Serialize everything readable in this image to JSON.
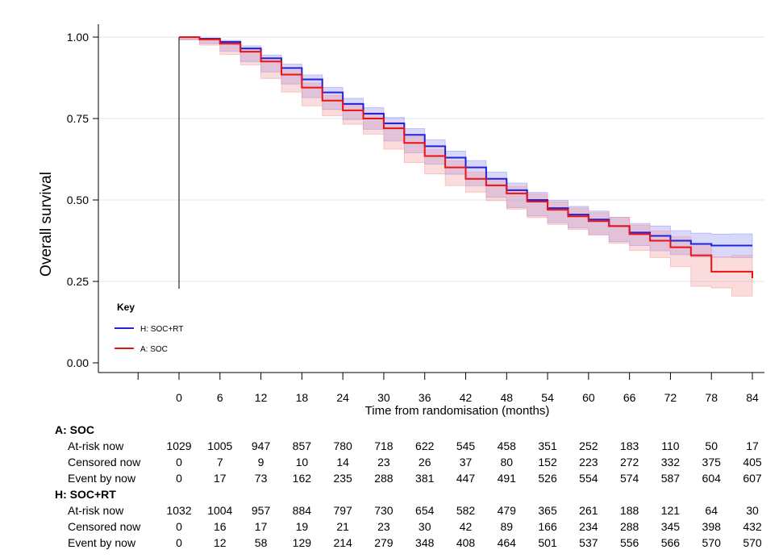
{
  "chart_data": {
    "type": "line",
    "title": "",
    "ylabel": "Overall survival",
    "xlabel": "Time from randomisation (months)",
    "xlim": [
      -6,
      84
    ],
    "ylim": [
      0,
      1
    ],
    "x_ticks": [
      0,
      6,
      12,
      18,
      24,
      30,
      36,
      42,
      48,
      54,
      60,
      66,
      72,
      78,
      84
    ],
    "y_ticks": [
      "0.00",
      "0.25",
      "0.50",
      "0.75",
      "1.00"
    ],
    "grid": "horizontal",
    "legend": {
      "title": "Key",
      "placement": "bottom-left"
    },
    "series": [
      {
        "name": "H: SOC+RT",
        "color": "#2222dd",
        "band_color": "#8f8ff0",
        "points": [
          [
            0,
            1.0
          ],
          [
            3,
            0.995
          ],
          [
            6,
            0.985
          ],
          [
            9,
            0.965
          ],
          [
            12,
            0.935
          ],
          [
            15,
            0.905
          ],
          [
            18,
            0.87
          ],
          [
            21,
            0.83
          ],
          [
            24,
            0.795
          ],
          [
            27,
            0.765
          ],
          [
            30,
            0.735
          ],
          [
            33,
            0.7
          ],
          [
            36,
            0.665
          ],
          [
            39,
            0.63
          ],
          [
            42,
            0.6
          ],
          [
            45,
            0.565
          ],
          [
            48,
            0.53
          ],
          [
            51,
            0.5
          ],
          [
            54,
            0.475
          ],
          [
            57,
            0.455
          ],
          [
            60,
            0.44
          ],
          [
            63,
            0.42
          ],
          [
            66,
            0.4
          ],
          [
            69,
            0.39
          ],
          [
            72,
            0.375
          ],
          [
            75,
            0.365
          ],
          [
            78,
            0.36
          ],
          [
            81,
            0.36
          ],
          [
            84,
            0.36
          ]
        ],
        "ci_halfwidth": [
          0,
          0.002,
          0.005,
          0.008,
          0.01,
          0.012,
          0.014,
          0.016,
          0.017,
          0.018,
          0.018,
          0.019,
          0.02,
          0.02,
          0.021,
          0.021,
          0.022,
          0.023,
          0.024,
          0.025,
          0.026,
          0.027,
          0.028,
          0.03,
          0.031,
          0.033,
          0.035,
          0.036,
          0.037
        ]
      },
      {
        "name": "A: SOC",
        "color": "#ee1111",
        "band_color": "#f49a9a",
        "points": [
          [
            0,
            1.0
          ],
          [
            3,
            0.993
          ],
          [
            6,
            0.98
          ],
          [
            9,
            0.955
          ],
          [
            12,
            0.925
          ],
          [
            15,
            0.885
          ],
          [
            18,
            0.845
          ],
          [
            21,
            0.805
          ],
          [
            24,
            0.775
          ],
          [
            27,
            0.75
          ],
          [
            30,
            0.72
          ],
          [
            33,
            0.675
          ],
          [
            36,
            0.635
          ],
          [
            39,
            0.6
          ],
          [
            42,
            0.565
          ],
          [
            45,
            0.545
          ],
          [
            48,
            0.52
          ],
          [
            51,
            0.495
          ],
          [
            54,
            0.47
          ],
          [
            57,
            0.45
          ],
          [
            60,
            0.435
          ],
          [
            63,
            0.42
          ],
          [
            66,
            0.395
          ],
          [
            69,
            0.375
          ],
          [
            72,
            0.355
          ],
          [
            75,
            0.33
          ],
          [
            78,
            0.28
          ],
          [
            81,
            0.28
          ],
          [
            84,
            0.26
          ]
        ],
        "ci_halfwidth": [
          0,
          0.002,
          0.005,
          0.008,
          0.01,
          0.012,
          0.014,
          0.016,
          0.017,
          0.018,
          0.018,
          0.019,
          0.02,
          0.02,
          0.021,
          0.021,
          0.022,
          0.023,
          0.024,
          0.025,
          0.026,
          0.027,
          0.028,
          0.03,
          0.032,
          0.035,
          0.045,
          0.05,
          0.055
        ]
      }
    ],
    "risk_table": [
      {
        "group": "A: SOC",
        "rows": [
          {
            "label": "At-risk now",
            "values": [
              "1029",
              "1005",
              "947",
              "857",
              "780",
              "718",
              "622",
              "545",
              "458",
              "351",
              "252",
              "183",
              "110",
              "50",
              "17"
            ]
          },
          {
            "label": "Censored now",
            "values": [
              "0",
              "7",
              "9",
              "10",
              "14",
              "23",
              "26",
              "37",
              "80",
              "152",
              "223",
              "272",
              "332",
              "375",
              "405"
            ]
          },
          {
            "label": "Event by now",
            "values": [
              "0",
              "17",
              "73",
              "162",
              "235",
              "288",
              "381",
              "447",
              "491",
              "526",
              "554",
              "574",
              "587",
              "604",
              "607"
            ]
          }
        ]
      },
      {
        "group": "H: SOC+RT",
        "rows": [
          {
            "label": "At-risk now",
            "values": [
              "1032",
              "1004",
              "957",
              "884",
              "797",
              "730",
              "654",
              "582",
              "479",
              "365",
              "261",
              "188",
              "121",
              "64",
              "30"
            ]
          },
          {
            "label": "Censored now",
            "values": [
              "0",
              "16",
              "17",
              "19",
              "21",
              "23",
              "30",
              "42",
              "89",
              "166",
              "234",
              "288",
              "345",
              "398",
              "432"
            ]
          },
          {
            "label": "Event by now",
            "values": [
              "0",
              "12",
              "58",
              "129",
              "214",
              "279",
              "348",
              "408",
              "464",
              "501",
              "537",
              "556",
              "566",
              "570",
              "570"
            ]
          }
        ]
      }
    ]
  }
}
